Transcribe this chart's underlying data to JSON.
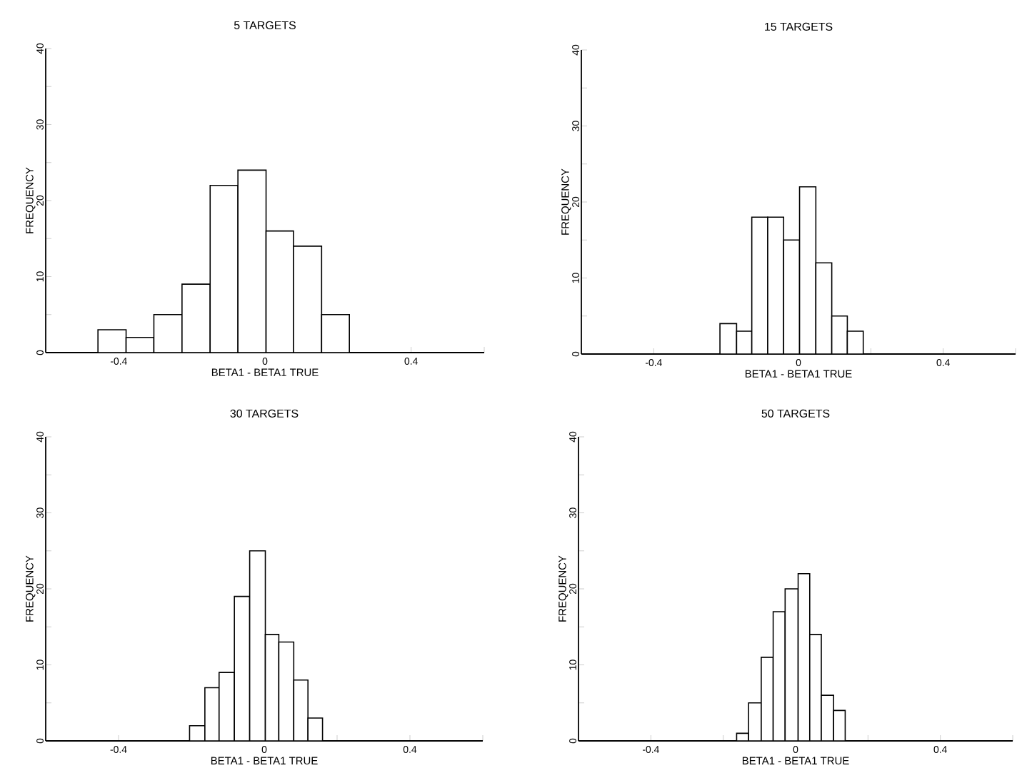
{
  "chart_data": [
    {
      "type": "histogram",
      "title": "5 TARGETS",
      "xlabel": "BETA1 - BETA1 TRUE",
      "ylabel": "FREQUENCY",
      "bins": [
        -0.457,
        -0.38,
        -0.304,
        -0.227,
        -0.15,
        -0.074,
        0.003,
        0.078,
        0.155,
        0.231
      ],
      "values": [
        3,
        2,
        5,
        9,
        22,
        24,
        16,
        14,
        5
      ],
      "xlim": [
        -0.6,
        0.6
      ],
      "ylim": [
        0,
        40
      ],
      "xticks": [
        -0.4,
        {
          "value": -0.2,
          "label": null
        },
        0,
        {
          "value": 0.2,
          "label": null
        },
        0.4,
        {
          "value": 0.6,
          "label": null
        }
      ],
      "yticks": [
        0,
        {
          "value": 5,
          "label": null
        },
        10,
        {
          "value": 15,
          "label": null
        },
        20,
        {
          "value": 25,
          "label": null
        },
        30,
        {
          "value": 35,
          "label": null
        },
        40
      ]
    },
    {
      "type": "histogram",
      "title": "15 TARGETS",
      "xlabel": "BETA1 - BETA1 TRUE",
      "ylabel": "FREQUENCY",
      "bins": [
        -0.217,
        -0.171,
        -0.129,
        -0.085,
        -0.041,
        0.003,
        0.048,
        0.092,
        0.135,
        0.179
      ],
      "values": [
        4,
        3,
        18,
        18,
        15,
        22,
        12,
        5,
        3
      ],
      "xlim": [
        -0.6,
        0.6
      ],
      "ylim": [
        0,
        40
      ],
      "xticks": [
        -0.4,
        {
          "value": -0.2,
          "label": null
        },
        0,
        {
          "value": 0.2,
          "label": null
        },
        0.4,
        {
          "value": 0.6,
          "label": null
        }
      ],
      "yticks": [
        0,
        {
          "value": 5,
          "label": null
        },
        10,
        {
          "value": 15,
          "label": null
        },
        20,
        {
          "value": 25,
          "label": null
        },
        30,
        {
          "value": 35,
          "label": null
        },
        40
      ]
    },
    {
      "type": "histogram",
      "title": "30 TARGETS",
      "xlabel": "BETA1 - BETA1 TRUE",
      "ylabel": "FREQUENCY",
      "bins": [
        -0.205,
        -0.163,
        -0.124,
        -0.082,
        -0.04,
        0.003,
        0.04,
        0.081,
        0.12,
        0.16
      ],
      "values": [
        2,
        7,
        9,
        19,
        25,
        14,
        13,
        8,
        3
      ],
      "xlim": [
        -0.6,
        0.6
      ],
      "ylim": [
        0,
        40
      ],
      "xticks": [
        -0.4,
        {
          "value": -0.2,
          "label": null
        },
        0,
        {
          "value": 0.2,
          "label": null
        },
        0.4,
        {
          "value": 0.6,
          "label": null
        }
      ],
      "yticks": [
        0,
        {
          "value": 5,
          "label": null
        },
        10,
        {
          "value": 15,
          "label": null
        },
        20,
        {
          "value": 25,
          "label": null
        },
        30,
        {
          "value": 35,
          "label": null
        },
        40
      ]
    },
    {
      "type": "histogram",
      "title": "50 TARGETS",
      "xlabel": "BETA1 - BETA1 TRUE",
      "ylabel": "FREQUENCY",
      "bins": [
        -0.163,
        -0.13,
        -0.095,
        -0.062,
        -0.029,
        0.007,
        0.039,
        0.071,
        0.105,
        0.137
      ],
      "values": [
        1,
        5,
        11,
        17,
        20,
        22,
        14,
        6,
        4
      ],
      "xlim": [
        -0.6,
        0.6
      ],
      "ylim": [
        0,
        40
      ],
      "xticks": [
        -0.4,
        {
          "value": -0.2,
          "label": null
        },
        0,
        {
          "value": 0.2,
          "label": null
        },
        0.4,
        {
          "value": 0.6,
          "label": null
        }
      ],
      "yticks": [
        0,
        {
          "value": 5,
          "label": null
        },
        10,
        {
          "value": 15,
          "label": null
        },
        20,
        {
          "value": 25,
          "label": null
        },
        30,
        {
          "value": 35,
          "label": null
        },
        40
      ]
    }
  ]
}
